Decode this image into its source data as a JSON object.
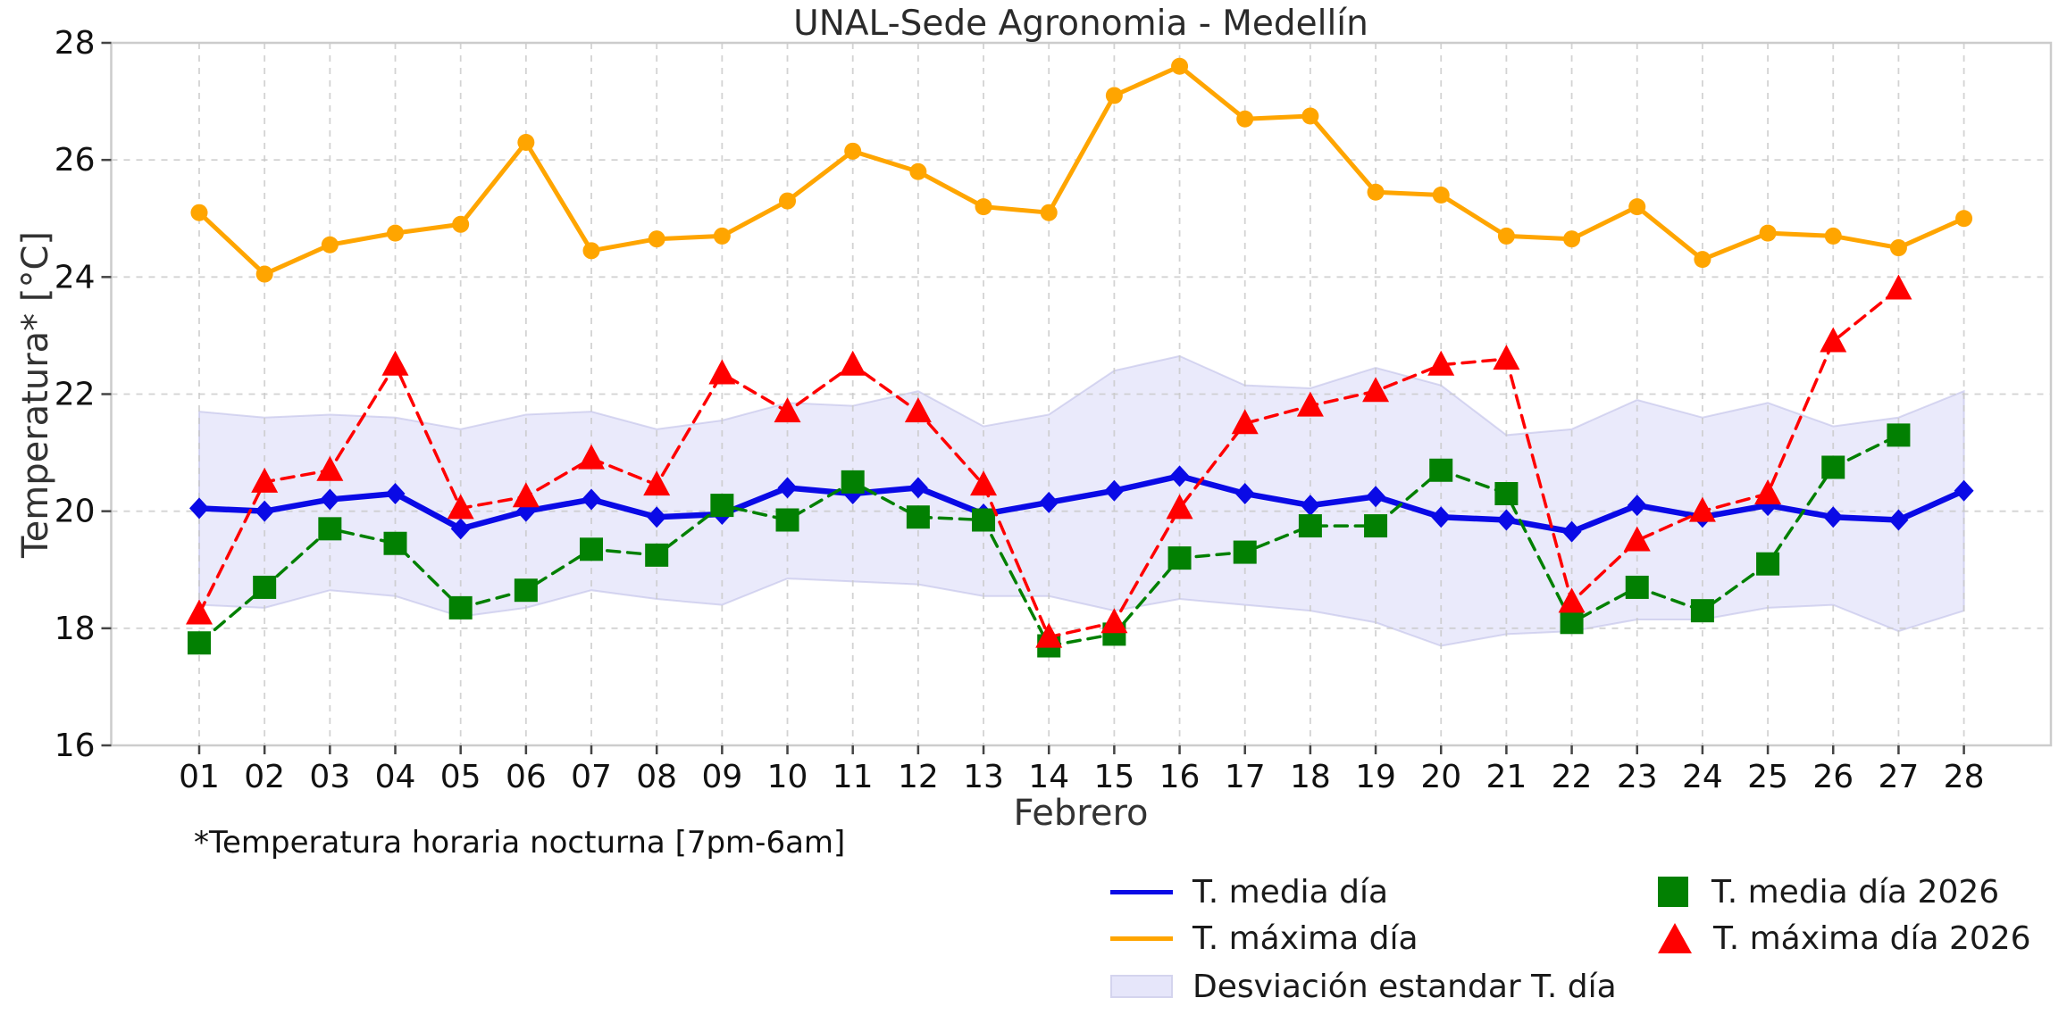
{
  "footnote": "*Temperatura horaria nocturna [7pm-6am]",
  "chart_data": {
    "type": "line",
    "title": "UNAL-Sede Agronomia - Medellín",
    "xlabel": "Febrero",
    "ylabel": "Temperatura* [°C]",
    "ylim": [
      16,
      28
    ],
    "yticks": [
      16,
      18,
      20,
      22,
      24,
      26,
      28
    ],
    "grid": true,
    "legend_position": "bottom",
    "categories": [
      "01",
      "02",
      "03",
      "04",
      "05",
      "06",
      "07",
      "08",
      "09",
      "10",
      "11",
      "12",
      "13",
      "14",
      "15",
      "16",
      "17",
      "18",
      "19",
      "20",
      "21",
      "22",
      "23",
      "24",
      "25",
      "26",
      "27",
      "28"
    ],
    "series": [
      {
        "name": "T. media día",
        "color": "#0a0ae6",
        "line": "solid",
        "marker": "diamond",
        "values": [
          20.05,
          20.0,
          20.2,
          20.3,
          19.7,
          20.0,
          20.2,
          19.9,
          19.95,
          20.4,
          20.3,
          20.4,
          19.95,
          20.15,
          20.35,
          20.6,
          20.3,
          20.1,
          20.25,
          19.9,
          19.85,
          19.65,
          20.1,
          19.9,
          20.1,
          19.9,
          19.85,
          20.35
        ]
      },
      {
        "name": "T. máxima día",
        "color": "#ffa500",
        "line": "solid",
        "marker": "circle",
        "values": [
          25.1,
          24.05,
          24.55,
          24.75,
          24.9,
          26.3,
          24.45,
          24.65,
          24.7,
          25.3,
          26.15,
          25.8,
          25.2,
          25.1,
          27.1,
          27.6,
          26.7,
          26.75,
          25.45,
          25.4,
          24.7,
          24.65,
          25.2,
          24.3,
          24.75,
          24.7,
          24.5,
          25.0
        ]
      },
      {
        "name": "T. media día 2026",
        "color": "#028002",
        "line": "dashed",
        "marker": "square",
        "values": [
          17.75,
          18.7,
          19.7,
          19.45,
          18.35,
          18.65,
          19.35,
          19.25,
          20.1,
          19.85,
          20.5,
          19.9,
          19.85,
          17.7,
          17.9,
          19.2,
          19.3,
          19.75,
          19.75,
          20.7,
          20.3,
          18.1,
          18.7,
          18.3,
          19.1,
          20.75,
          21.3
        ]
      },
      {
        "name": "T. máxima día 2026",
        "color": "#ff0000",
        "line": "dashed",
        "marker": "triangle",
        "values": [
          18.25,
          20.5,
          20.7,
          22.5,
          20.05,
          20.25,
          20.9,
          20.45,
          22.35,
          21.7,
          22.5,
          21.7,
          20.45,
          17.85,
          18.1,
          20.05,
          21.5,
          21.8,
          22.05,
          22.5,
          22.6,
          18.45,
          19.5,
          20.0,
          20.3,
          22.9,
          23.8
        ]
      }
    ],
    "band": {
      "name": "Desviación estandar T. día",
      "fill": "#e6e6fa",
      "upper": [
        21.7,
        21.6,
        21.65,
        21.6,
        21.4,
        21.65,
        21.7,
        21.4,
        21.55,
        21.85,
        21.8,
        22.05,
        21.45,
        21.65,
        22.4,
        22.65,
        22.15,
        22.1,
        22.45,
        22.15,
        21.3,
        21.4,
        21.9,
        21.6,
        21.85,
        21.45,
        21.6,
        22.05
      ],
      "lower": [
        18.4,
        18.35,
        18.65,
        18.55,
        18.2,
        18.35,
        18.65,
        18.5,
        18.4,
        18.85,
        18.8,
        18.75,
        18.55,
        18.55,
        18.3,
        18.5,
        18.4,
        18.3,
        18.1,
        17.7,
        17.9,
        17.95,
        18.15,
        18.15,
        18.35,
        18.4,
        17.95,
        18.3
      ]
    }
  }
}
